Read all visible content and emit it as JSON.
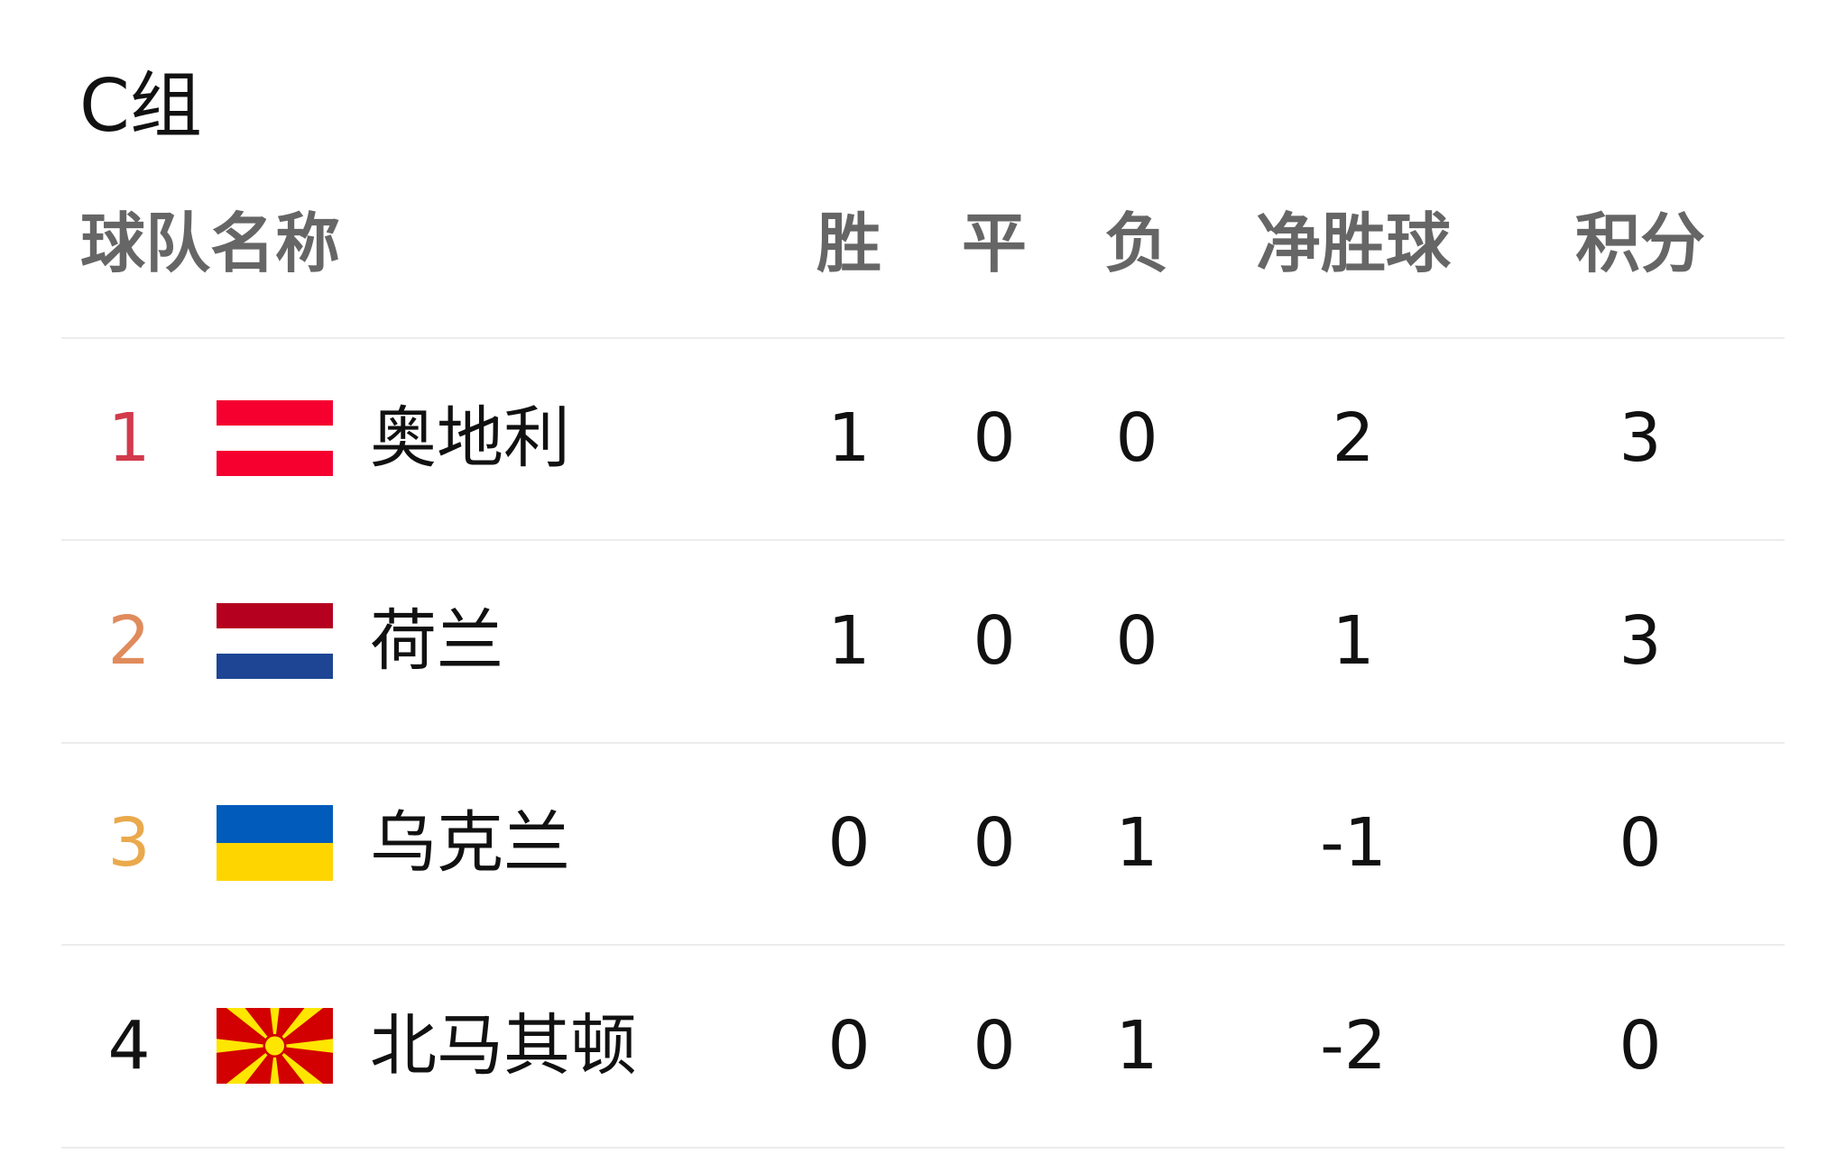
{
  "title": "C组",
  "headers": {
    "team": "球队名称",
    "w": "胜",
    "d": "平",
    "l": "负",
    "gd": "净胜球",
    "pts": "积分"
  },
  "rank_colors": [
    "#d23a4c",
    "#e08b5c",
    "#eaa94c",
    "#111111"
  ],
  "rows": [
    {
      "rank": "1",
      "team": "奥地利",
      "flag": "austria-flag",
      "w": "1",
      "d": "0",
      "l": "0",
      "gd": "2",
      "pts": "3"
    },
    {
      "rank": "2",
      "team": "荷兰",
      "flag": "netherlands-flag",
      "w": "1",
      "d": "0",
      "l": "0",
      "gd": "1",
      "pts": "3"
    },
    {
      "rank": "3",
      "team": "乌克兰",
      "flag": "ukraine-flag",
      "w": "0",
      "d": "0",
      "l": "1",
      "gd": "-1",
      "pts": "0"
    },
    {
      "rank": "4",
      "team": "北马其顿",
      "flag": "north-macedonia-flag",
      "w": "0",
      "d": "0",
      "l": "1",
      "gd": "-2",
      "pts": "0"
    }
  ]
}
